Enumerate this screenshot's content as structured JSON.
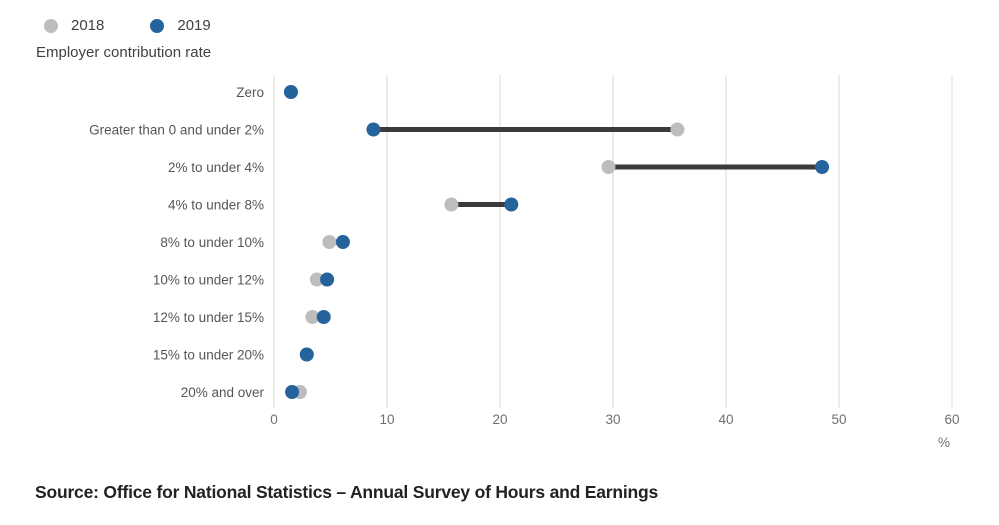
{
  "legend": {
    "items": [
      {
        "label": "2018",
        "color": "#bdbdbd"
      },
      {
        "label": "2019",
        "color": "#24639b"
      }
    ]
  },
  "subtitle": "Employer contribution rate",
  "chart_data": {
    "type": "dumbbell-dot",
    "title": "",
    "xlabel": "%",
    "xlim": [
      0,
      60
    ],
    "x_ticks": [
      0,
      10,
      20,
      30,
      40,
      50,
      60
    ],
    "grid": "vertical",
    "grid_color": "#d9d9d9",
    "tick_color": "#6f6f71",
    "category_color": "#55565a",
    "connector_color": "#3a3a3a",
    "legend_position": "top-left",
    "categories": [
      "Zero",
      "Greater than 0 and under 2%",
      "2% to under 4%",
      "4% to under 8%",
      "8% to under 10%",
      "10% to under 12%",
      "12% to under 15%",
      "15% to under 20%",
      "20% and over"
    ],
    "series": [
      {
        "name": "2018",
        "color": "#bdbdbd",
        "values": [
          1.5,
          35.7,
          29.6,
          15.7,
          4.9,
          3.8,
          3.4,
          2.9,
          2.3
        ]
      },
      {
        "name": "2019",
        "color": "#24639b",
        "values": [
          1.5,
          8.8,
          48.5,
          21.0,
          6.1,
          4.7,
          4.4,
          2.9,
          1.6
        ]
      }
    ]
  },
  "source": "Source: Office for National Statistics – Annual Survey of Hours and Earnings"
}
